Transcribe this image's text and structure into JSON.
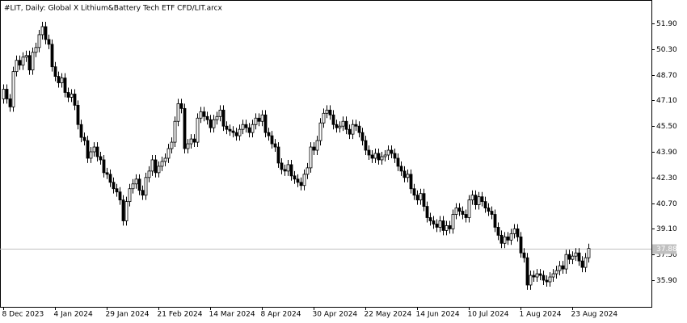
{
  "chart_data": {
    "type": "candlestick",
    "title": "#LIT, Daily:  Global X Lithium&Battery Tech ETF CFD/LIT.arcx",
    "ylim": [
      34.24,
      53.36
    ],
    "yticks": [
      {
        "value": 51.9,
        "label": "51.90"
      },
      {
        "value": 50.3,
        "label": "50.30"
      },
      {
        "value": 48.7,
        "label": "48.70"
      },
      {
        "value": 47.1,
        "label": "47.10"
      },
      {
        "value": 45.5,
        "label": "45.50"
      },
      {
        "value": 43.9,
        "label": "43.90"
      },
      {
        "value": 42.3,
        "label": "42.30"
      },
      {
        "value": 40.7,
        "label": "40.70"
      },
      {
        "value": 39.1,
        "label": "39.10"
      },
      {
        "value": 37.5,
        "label": "37.50"
      },
      {
        "value": 35.9,
        "label": "35.90"
      }
    ],
    "last_price": 37.88,
    "up_color": "#ffffff",
    "down_color": "#000000",
    "outline_color": "#000000",
    "categories": [
      "8 Dec 2023",
      null,
      null,
      null,
      null,
      null,
      null,
      null,
      null,
      null,
      null,
      null,
      null,
      null,
      null,
      null,
      "4 Jan 2024",
      null,
      null,
      null,
      null,
      null,
      null,
      null,
      null,
      null,
      null,
      null,
      null,
      null,
      null,
      null,
      "29 Jan 2024",
      null,
      null,
      null,
      null,
      null,
      null,
      null,
      null,
      null,
      null,
      null,
      null,
      null,
      null,
      null,
      "21 Feb 2024",
      null,
      null,
      null,
      null,
      null,
      null,
      null,
      null,
      null,
      null,
      null,
      null,
      null,
      null,
      null,
      "14 Mar 2024",
      null,
      null,
      null,
      null,
      null,
      null,
      null,
      null,
      null,
      null,
      null,
      null,
      null,
      null,
      null,
      "8 Apr 2024",
      null,
      null,
      null,
      null,
      null,
      null,
      null,
      null,
      null,
      null,
      null,
      null,
      null,
      null,
      null,
      "30 Apr 2024",
      null,
      null,
      null,
      null,
      null,
      null,
      null,
      null,
      null,
      null,
      null,
      null,
      null,
      null,
      null,
      "22 May 2024",
      null,
      null,
      null,
      null,
      null,
      null,
      null,
      null,
      null,
      null,
      null,
      null,
      null,
      null,
      null,
      "14 Jun 2024",
      null,
      null,
      null,
      null,
      null,
      null,
      null,
      null,
      null,
      null,
      null,
      null,
      null,
      null,
      null,
      "10 Jul 2024",
      null,
      null,
      null,
      null,
      null,
      null,
      null,
      null,
      null,
      null,
      null,
      null,
      null,
      null,
      null,
      "1 Aug 2024",
      null,
      null,
      null,
      null,
      null,
      null,
      null,
      null,
      null,
      null,
      null,
      null,
      null,
      null,
      null,
      "23 Aug 2024",
      null,
      null,
      null,
      null,
      null
    ],
    "candles": [
      [
        47.2,
        48.1,
        46.9,
        47.8
      ],
      [
        47.8,
        48.1,
        46.9,
        47.2
      ],
      [
        47.2,
        47.5,
        46.4,
        46.7
      ],
      [
        46.7,
        49.2,
        46.4,
        48.9
      ],
      [
        48.9,
        49.9,
        48.6,
        49.6
      ],
      [
        49.6,
        49.9,
        49.0,
        49.3
      ],
      [
        49.3,
        50.1,
        49.0,
        49.8
      ],
      [
        49.8,
        50.2,
        49.5,
        49.9
      ],
      [
        49.9,
        50.2,
        48.7,
        49.0
      ],
      [
        49.0,
        50.4,
        48.7,
        50.1
      ],
      [
        50.1,
        50.7,
        49.8,
        50.4
      ],
      [
        50.4,
        51.5,
        50.1,
        51.2
      ],
      [
        51.2,
        52.0,
        50.9,
        51.7
      ],
      [
        51.7,
        52.0,
        50.6,
        50.9
      ],
      [
        50.9,
        51.2,
        50.3,
        50.6
      ],
      [
        50.6,
        50.9,
        48.9,
        49.2
      ],
      [
        49.2,
        49.5,
        48.3,
        48.6
      ],
      [
        48.6,
        48.9,
        47.9,
        48.2
      ],
      [
        48.2,
        48.8,
        47.9,
        48.5
      ],
      [
        48.5,
        48.8,
        47.3,
        47.6
      ],
      [
        47.6,
        47.9,
        47.0,
        47.3
      ],
      [
        47.3,
        47.8,
        47.0,
        47.5
      ],
      [
        47.5,
        47.8,
        46.5,
        46.8
      ],
      [
        46.8,
        47.1,
        45.3,
        45.6
      ],
      [
        45.6,
        45.9,
        44.5,
        44.8
      ],
      [
        44.8,
        45.1,
        44.3,
        44.6
      ],
      [
        44.6,
        44.9,
        43.2,
        43.5
      ],
      [
        43.5,
        44.2,
        43.2,
        43.9
      ],
      [
        43.9,
        44.5,
        43.6,
        44.2
      ],
      [
        44.2,
        44.5,
        43.3,
        43.6
      ],
      [
        43.6,
        43.9,
        43.1,
        43.4
      ],
      [
        43.4,
        43.7,
        42.3,
        42.6
      ],
      [
        42.6,
        42.9,
        42.2,
        42.5
      ],
      [
        42.5,
        42.8,
        41.7,
        42.0
      ],
      [
        42.0,
        42.3,
        41.3,
        41.6
      ],
      [
        41.6,
        41.9,
        41.1,
        41.4
      ],
      [
        41.4,
        41.7,
        40.6,
        40.9
      ],
      [
        40.9,
        41.2,
        39.3,
        39.6
      ],
      [
        39.6,
        41.1,
        39.3,
        40.8
      ],
      [
        40.8,
        41.9,
        40.5,
        41.6
      ],
      [
        41.6,
        42.2,
        41.3,
        41.9
      ],
      [
        41.9,
        42.5,
        41.6,
        42.2
      ],
      [
        42.2,
        42.5,
        41.2,
        41.5
      ],
      [
        41.5,
        41.8,
        40.9,
        41.2
      ],
      [
        41.2,
        42.6,
        40.9,
        42.3
      ],
      [
        42.3,
        43.0,
        42.0,
        42.7
      ],
      [
        42.7,
        43.7,
        42.4,
        43.4
      ],
      [
        43.4,
        43.7,
        42.3,
        42.6
      ],
      [
        42.6,
        43.3,
        42.3,
        43.0
      ],
      [
        43.0,
        43.6,
        42.7,
        43.3
      ],
      [
        43.3,
        43.8,
        43.0,
        43.5
      ],
      [
        43.5,
        44.4,
        43.2,
        44.1
      ],
      [
        44.1,
        44.8,
        43.8,
        44.5
      ],
      [
        44.5,
        46.1,
        44.2,
        45.8
      ],
      [
        45.8,
        47.2,
        45.5,
        46.9
      ],
      [
        46.9,
        47.2,
        46.3,
        46.6
      ],
      [
        46.6,
        46.9,
        43.8,
        44.1
      ],
      [
        44.1,
        44.7,
        43.8,
        44.4
      ],
      [
        44.4,
        45.0,
        44.1,
        44.7
      ],
      [
        44.7,
        45.0,
        44.2,
        44.5
      ],
      [
        44.5,
        46.3,
        44.2,
        46.0
      ],
      [
        46.0,
        46.7,
        45.7,
        46.4
      ],
      [
        46.4,
        46.7,
        45.8,
        46.1
      ],
      [
        46.1,
        46.4,
        45.6,
        45.9
      ],
      [
        45.9,
        46.2,
        45.1,
        45.4
      ],
      [
        45.4,
        46.2,
        45.1,
        45.9
      ],
      [
        45.9,
        46.4,
        45.6,
        46.1
      ],
      [
        46.1,
        46.8,
        45.8,
        46.5
      ],
      [
        46.5,
        46.8,
        45.2,
        45.5
      ],
      [
        45.5,
        45.8,
        45.0,
        45.3
      ],
      [
        45.3,
        45.6,
        44.9,
        45.2
      ],
      [
        45.2,
        45.5,
        44.8,
        45.1
      ],
      [
        45.1,
        45.4,
        44.6,
        44.9
      ],
      [
        44.9,
        45.6,
        44.6,
        45.3
      ],
      [
        45.3,
        45.9,
        45.0,
        45.6
      ],
      [
        45.6,
        45.9,
        45.1,
        45.4
      ],
      [
        45.4,
        45.7,
        44.8,
        45.1
      ],
      [
        45.1,
        45.9,
        44.8,
        45.6
      ],
      [
        45.6,
        46.3,
        45.3,
        46.0
      ],
      [
        46.0,
        46.3,
        45.5,
        45.8
      ],
      [
        45.8,
        46.5,
        45.5,
        46.2
      ],
      [
        46.2,
        46.5,
        44.8,
        45.1
      ],
      [
        45.1,
        45.4,
        44.6,
        44.9
      ],
      [
        44.9,
        45.2,
        44.1,
        44.4
      ],
      [
        44.4,
        44.7,
        43.9,
        44.2
      ],
      [
        44.2,
        44.5,
        42.9,
        43.2
      ],
      [
        43.2,
        43.5,
        42.5,
        42.8
      ],
      [
        42.8,
        43.1,
        42.4,
        42.7
      ],
      [
        42.7,
        43.4,
        42.4,
        43.1
      ],
      [
        43.1,
        43.4,
        42.1,
        42.4
      ],
      [
        42.4,
        42.7,
        41.9,
        42.2
      ],
      [
        42.2,
        42.5,
        41.7,
        42.0
      ],
      [
        42.0,
        42.3,
        41.5,
        41.8
      ],
      [
        41.8,
        42.8,
        41.5,
        42.5
      ],
      [
        42.5,
        43.2,
        42.2,
        42.9
      ],
      [
        42.9,
        44.5,
        42.6,
        44.2
      ],
      [
        44.2,
        44.5,
        43.7,
        44.0
      ],
      [
        44.0,
        44.9,
        43.7,
        44.6
      ],
      [
        44.6,
        46.0,
        44.3,
        45.7
      ],
      [
        45.7,
        46.6,
        45.4,
        46.3
      ],
      [
        46.3,
        46.8,
        46.0,
        46.5
      ],
      [
        46.5,
        46.8,
        45.9,
        46.2
      ],
      [
        46.2,
        46.5,
        45.3,
        45.6
      ],
      [
        45.6,
        45.9,
        45.1,
        45.4
      ],
      [
        45.4,
        45.8,
        45.1,
        45.5
      ],
      [
        45.5,
        46.1,
        45.2,
        45.8
      ],
      [
        45.8,
        46.1,
        45.0,
        45.3
      ],
      [
        45.3,
        45.6,
        44.7,
        45.0
      ],
      [
        45.0,
        45.9,
        44.7,
        45.6
      ],
      [
        45.6,
        45.9,
        45.2,
        45.5
      ],
      [
        45.5,
        45.8,
        44.8,
        45.1
      ],
      [
        45.1,
        45.4,
        44.3,
        44.6
      ],
      [
        44.6,
        44.9,
        43.7,
        44.0
      ],
      [
        44.0,
        44.3,
        43.4,
        43.7
      ],
      [
        43.7,
        44.0,
        43.2,
        43.5
      ],
      [
        43.5,
        44.1,
        43.2,
        43.8
      ],
      [
        43.8,
        44.1,
        43.1,
        43.4
      ],
      [
        43.4,
        43.9,
        43.1,
        43.6
      ],
      [
        43.6,
        44.0,
        43.3,
        43.7
      ],
      [
        43.7,
        44.3,
        43.4,
        44.0
      ],
      [
        44.0,
        44.3,
        43.5,
        43.8
      ],
      [
        43.8,
        44.1,
        43.2,
        43.5
      ],
      [
        43.5,
        43.8,
        42.7,
        43.0
      ],
      [
        43.0,
        43.3,
        42.4,
        42.7
      ],
      [
        42.7,
        43.0,
        42.0,
        42.3
      ],
      [
        42.3,
        42.8,
        42.0,
        42.5
      ],
      [
        42.5,
        42.8,
        41.3,
        41.6
      ],
      [
        41.6,
        41.9,
        40.9,
        41.2
      ],
      [
        41.2,
        41.5,
        40.6,
        40.9
      ],
      [
        40.9,
        41.6,
        40.6,
        41.3
      ],
      [
        41.3,
        41.6,
        40.2,
        40.5
      ],
      [
        40.5,
        40.8,
        39.5,
        39.8
      ],
      [
        39.8,
        40.1,
        39.3,
        39.6
      ],
      [
        39.6,
        39.9,
        39.1,
        39.4
      ],
      [
        39.4,
        39.7,
        38.9,
        39.2
      ],
      [
        39.2,
        39.9,
        38.9,
        39.6
      ],
      [
        39.6,
        39.9,
        38.7,
        39.0
      ],
      [
        39.0,
        39.6,
        38.7,
        39.3
      ],
      [
        39.3,
        39.6,
        38.8,
        39.1
      ],
      [
        39.1,
        40.3,
        38.8,
        40.0
      ],
      [
        40.0,
        40.7,
        39.7,
        40.4
      ],
      [
        40.4,
        40.7,
        39.9,
        40.2
      ],
      [
        40.2,
        40.5,
        39.7,
        40.0
      ],
      [
        40.0,
        40.3,
        39.5,
        39.8
      ],
      [
        39.8,
        41.2,
        39.5,
        40.9
      ],
      [
        40.9,
        41.5,
        40.6,
        41.2
      ],
      [
        41.2,
        41.5,
        40.3,
        40.6
      ],
      [
        40.6,
        41.4,
        40.3,
        41.1
      ],
      [
        41.1,
        41.4,
        40.5,
        40.8
      ],
      [
        40.8,
        41.1,
        40.1,
        40.4
      ],
      [
        40.4,
        40.7,
        39.9,
        40.2
      ],
      [
        40.2,
        40.5,
        39.7,
        40.0
      ],
      [
        40.0,
        40.3,
        38.9,
        39.2
      ],
      [
        39.2,
        39.5,
        38.4,
        38.7
      ],
      [
        38.7,
        39.0,
        37.9,
        38.2
      ],
      [
        38.2,
        38.9,
        37.9,
        38.6
      ],
      [
        38.6,
        38.9,
        38.1,
        38.4
      ],
      [
        38.4,
        39.1,
        38.1,
        38.8
      ],
      [
        38.8,
        39.4,
        38.5,
        39.1
      ],
      [
        39.1,
        39.4,
        38.3,
        38.6
      ],
      [
        38.6,
        38.9,
        37.3,
        37.6
      ],
      [
        37.6,
        37.9,
        37.0,
        37.3
      ],
      [
        37.3,
        37.6,
        35.3,
        35.6
      ],
      [
        35.6,
        36.5,
        35.3,
        36.2
      ],
      [
        36.2,
        36.5,
        35.8,
        36.1
      ],
      [
        36.1,
        36.6,
        35.8,
        36.3
      ],
      [
        36.3,
        36.6,
        35.9,
        36.2
      ],
      [
        36.2,
        36.5,
        35.6,
        35.9
      ],
      [
        35.9,
        36.2,
        35.5,
        35.8
      ],
      [
        35.8,
        36.4,
        35.5,
        36.1
      ],
      [
        36.1,
        36.6,
        35.8,
        36.3
      ],
      [
        36.3,
        36.8,
        36.0,
        36.5
      ],
      [
        36.5,
        37.1,
        36.2,
        36.8
      ],
      [
        36.8,
        37.1,
        36.3,
        36.6
      ],
      [
        36.6,
        37.8,
        36.3,
        37.5
      ],
      [
        37.5,
        37.8,
        36.9,
        37.2
      ],
      [
        37.2,
        37.7,
        36.9,
        37.4
      ],
      [
        37.4,
        37.9,
        37.1,
        37.6
      ],
      [
        37.6,
        37.9,
        36.8,
        37.1
      ],
      [
        37.1,
        37.4,
        36.4,
        36.7
      ],
      [
        36.7,
        37.6,
        36.4,
        37.3
      ],
      [
        37.3,
        38.18,
        37.0,
        37.88
      ]
    ]
  }
}
